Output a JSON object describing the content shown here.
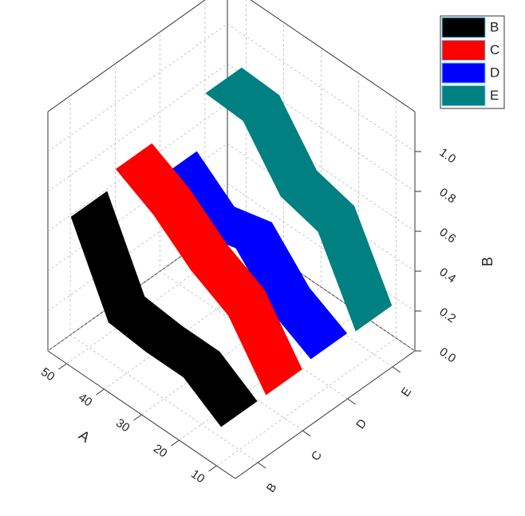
{
  "chart_data": {
    "type": "ribbon3d",
    "x_label": "A",
    "z_label": "B",
    "x": [
      10,
      20,
      30,
      40,
      50
    ],
    "categories": [
      "B",
      "C",
      "D",
      "E"
    ],
    "series": [
      {
        "name": "B",
        "color": "#000000",
        "values": [
          0.18,
          0.3,
          0.3,
          0.32,
          0.72
        ]
      },
      {
        "name": "C",
        "color": "#ff0000",
        "values": [
          0.18,
          0.45,
          0.55,
          0.7,
          0.8
        ]
      },
      {
        "name": "D",
        "color": "#0000ff",
        "values": [
          0.2,
          0.3,
          0.5,
          0.45,
          0.6
        ]
      },
      {
        "name": "E",
        "color": "#008080",
        "values": [
          0.18,
          0.55,
          0.6,
          0.85,
          0.86
        ]
      }
    ],
    "xlim": [
      5,
      55
    ],
    "xticks": [
      10,
      20,
      30,
      40,
      50
    ],
    "zlim": [
      0,
      1.2
    ],
    "zticks": [
      {
        "value": 0,
        "label": "0.0"
      },
      0.2,
      0.4,
      0.6,
      0.8,
      {
        "value": 1,
        "label": "1.0"
      }
    ],
    "grid": true,
    "legend": "top-right"
  }
}
